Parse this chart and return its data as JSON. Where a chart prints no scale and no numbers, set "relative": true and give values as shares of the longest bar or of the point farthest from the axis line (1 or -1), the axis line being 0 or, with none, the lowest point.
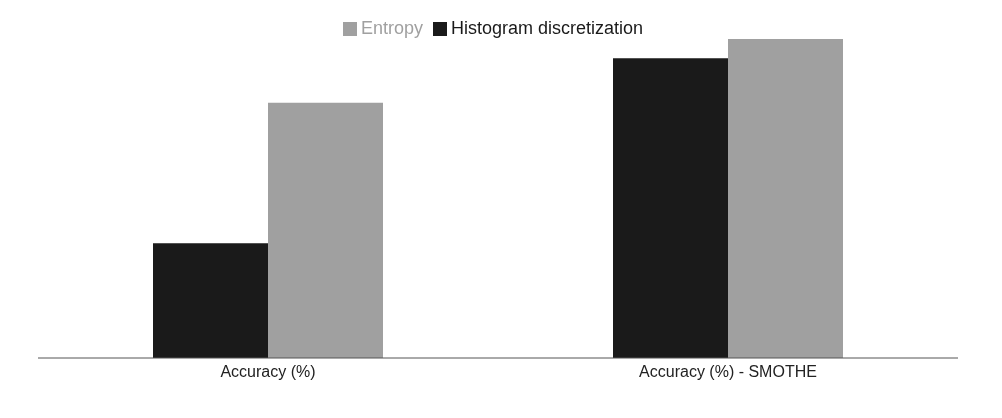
{
  "chart_data": {
    "type": "bar",
    "relative": true,
    "categories": [
      "Accuracy (%)",
      "Accuracy (%) - SMOTHE"
    ],
    "series": [
      {
        "name": "Histogram discretization",
        "color": "#1a1a1a",
        "values": [
          0.36,
          0.94
        ]
      },
      {
        "name": "Entropy",
        "color": "#a0a0a0",
        "values": [
          0.8,
          1
        ]
      }
    ],
    "legend": "top",
    "grid": false
  }
}
